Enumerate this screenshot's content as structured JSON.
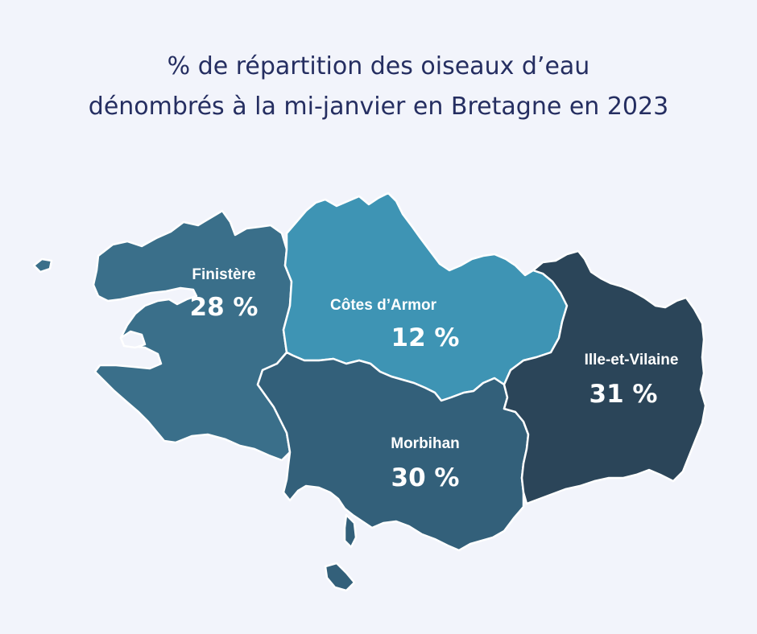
{
  "title": {
    "line1": "% de répartition des oiseaux d’eau",
    "line2": "dénombrés à la mi-janvier en Bretagne en 2023"
  },
  "regions": [
    {
      "name": "Finistère",
      "value": "28 %",
      "percent": 28,
      "color": "#3a6f8a"
    },
    {
      "name": "Côtes d’Armor",
      "value": "12 %",
      "percent": 12,
      "color": "#3e94b4"
    },
    {
      "name": "Morbihan",
      "value": "30 %",
      "percent": 30,
      "color": "#33607a"
    },
    {
      "name": "Ille-et-Vilaine",
      "value": "31 %",
      "percent": 31,
      "color": "#2b4559"
    }
  ],
  "colors": {
    "background": "#f2f4fb",
    "title": "#252e61",
    "border": "#ffffff"
  }
}
